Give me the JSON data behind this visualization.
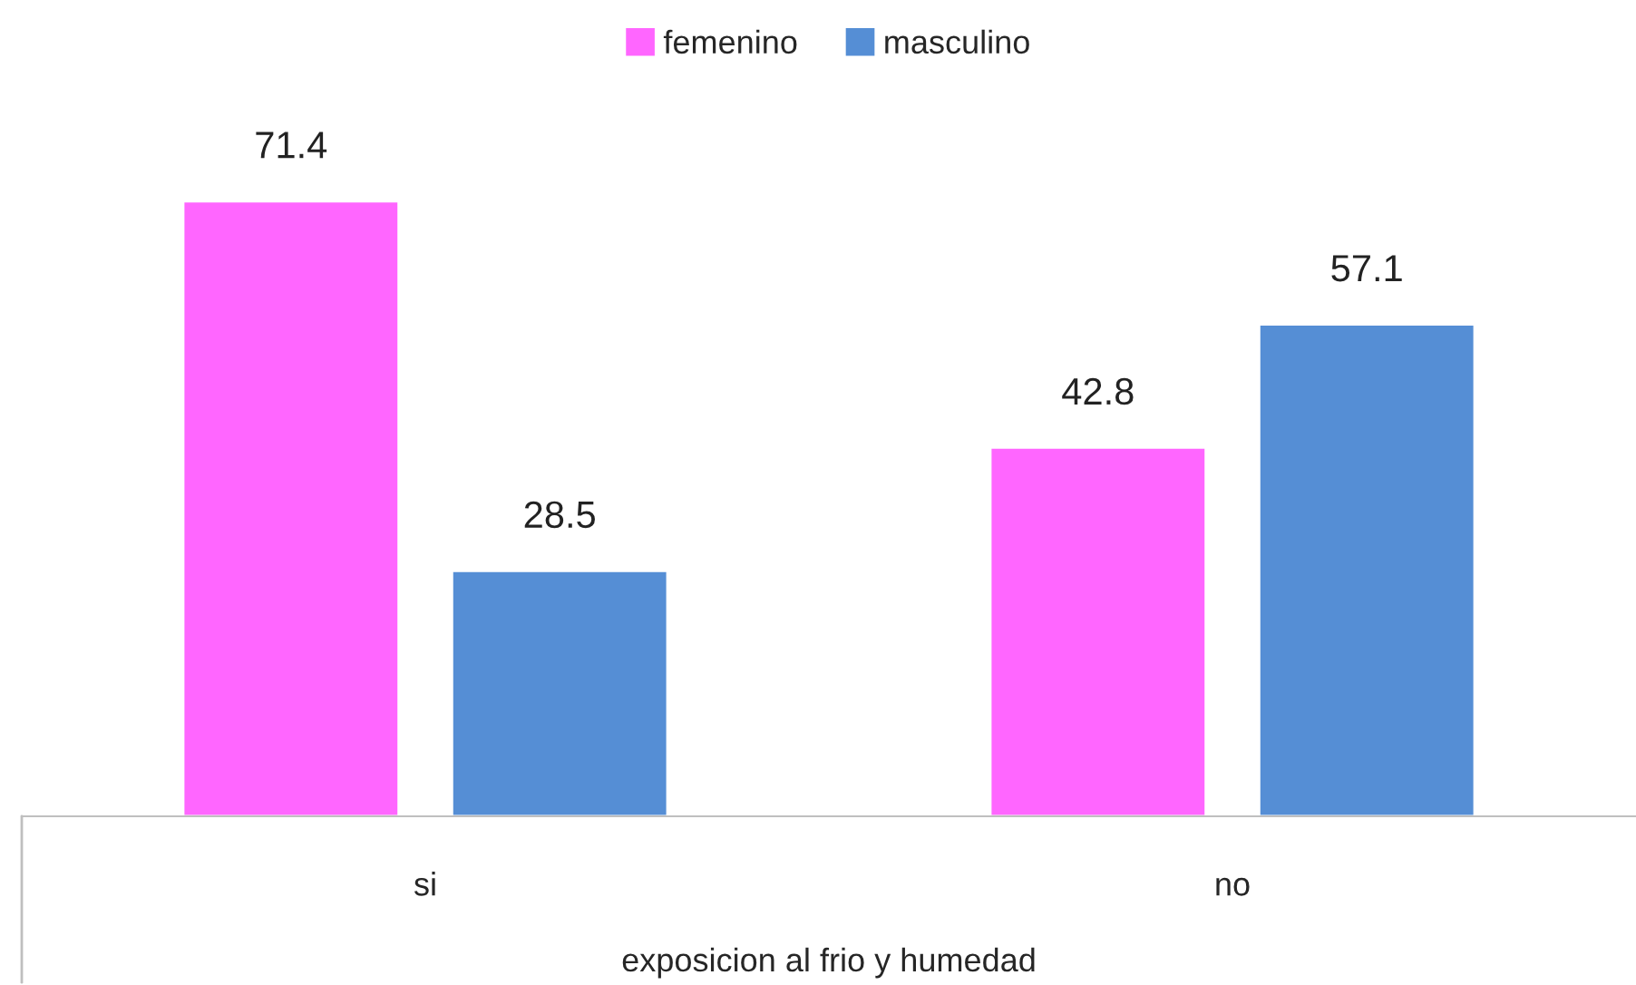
{
  "chart_data": {
    "type": "bar",
    "xlabel": "exposicion al frio y humedad",
    "categories": [
      "si",
      "no"
    ],
    "series": [
      {
        "name": "femenino",
        "color": "#ff66ff",
        "values": [
          71.4,
          42.8
        ]
      },
      {
        "name": "masculino",
        "color": "#558ed5",
        "values": [
          28.5,
          57.1
        ]
      }
    ],
    "data_labels": true,
    "legend": "top",
    "grid": false
  }
}
